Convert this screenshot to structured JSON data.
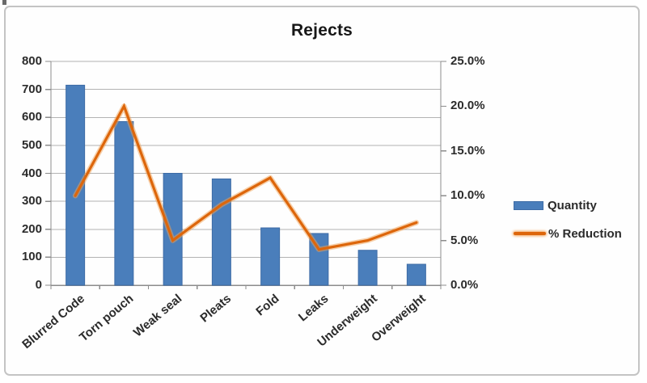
{
  "chart_data": {
    "type": "combo",
    "title": "Rejects",
    "categories": [
      "Blurred Code",
      "Torn pouch",
      "Weak seal",
      "Pleats",
      "Fold",
      "Leaks",
      "Underweight",
      "Overweight"
    ],
    "series": [
      {
        "name": "Quantity",
        "type": "bar",
        "axis": "left",
        "values": [
          715,
          585,
          400,
          380,
          205,
          185,
          125,
          75
        ]
      },
      {
        "name": "% Reduction",
        "type": "line",
        "axis": "right",
        "values": [
          10,
          20,
          5,
          9,
          12,
          4,
          5,
          7
        ]
      }
    ],
    "left_axis": {
      "min": 0,
      "max": 800,
      "step": 100,
      "tick_labels": [
        "800",
        "700",
        "600",
        "500",
        "400",
        "300",
        "200",
        "100",
        "0"
      ]
    },
    "right_axis": {
      "min": 0,
      "max": 25,
      "step": 5,
      "tick_labels": [
        "25.0%",
        "20.0%",
        "15.0%",
        "10.0%",
        "5.0%",
        "0.0%"
      ]
    },
    "legend": {
      "position": "right",
      "entries": [
        "Quantity",
        "% Reduction"
      ]
    },
    "grid": true
  },
  "colors": {
    "bar_fill": "#4a7ebb",
    "bar_border": "#3e6ca6",
    "line": "#dd660b",
    "line_glow": "#f0a155",
    "gridline": "#b3b3b3",
    "axis": "#8c8c8c",
    "text": "#2b2b2b",
    "title": "#171717",
    "frame_border": "#c4c4c4"
  }
}
